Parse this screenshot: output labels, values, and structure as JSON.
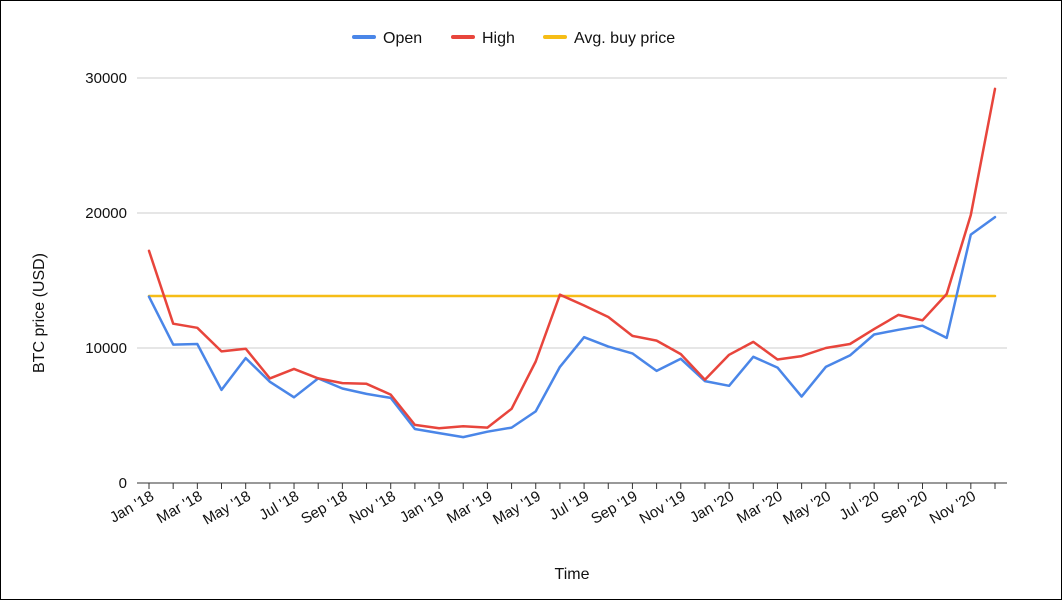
{
  "chart_data": {
    "type": "line",
    "title": "",
    "xlabel": "Time",
    "ylabel": "BTC price (USD)",
    "ylim": [
      0,
      30000
    ],
    "yticks": [
      0,
      10000,
      20000,
      30000
    ],
    "grid": true,
    "legend_position": "top",
    "categories": [
      "Jan '18",
      "Feb '18",
      "Mar '18",
      "Apr '18",
      "May '18",
      "Jun '18",
      "Jul '18",
      "Aug '18",
      "Sep '18",
      "Oct '18",
      "Nov '18",
      "Dec '18",
      "Jan '19",
      "Feb '19",
      "Mar '19",
      "Apr '19",
      "May '19",
      "Jun '19",
      "Jul '19",
      "Aug '19",
      "Sep '19",
      "Oct '19",
      "Nov '19",
      "Dec '19",
      "Jan '20",
      "Feb '20",
      "Mar '20",
      "Apr '20",
      "May '20",
      "Jun '20",
      "Jul '20",
      "Aug '20",
      "Sep '20",
      "Oct '20",
      "Nov '20",
      "Dec '20"
    ],
    "xtick_labels": [
      "Jan '18",
      "Mar '18",
      "May '18",
      "Jul '18",
      "Sep '18",
      "Nov '18",
      "Jan '19",
      "Mar '19",
      "May '19",
      "Jul '19",
      "Sep '19",
      "Nov '19",
      "Jan '20",
      "Mar '20",
      "May '20",
      "Jul '20",
      "Sep '20",
      "Nov '20"
    ],
    "series": [
      {
        "name": "Open",
        "color": "#4a86e8",
        "values": [
          13800,
          10250,
          10300,
          6900,
          9250,
          7500,
          6350,
          7750,
          7000,
          6600,
          6300,
          4000,
          3700,
          3400,
          3800,
          4100,
          5300,
          8600,
          10800,
          10100,
          9600,
          8300,
          9200,
          7550,
          7200,
          9350,
          8550,
          6400,
          8600,
          9450,
          11000,
          11350,
          11650,
          10750,
          18400,
          19700
        ]
      },
      {
        "name": "High",
        "color": "#e8453c",
        "values": [
          17200,
          11800,
          11500,
          9750,
          9950,
          7750,
          8450,
          7750,
          7400,
          7350,
          6550,
          4300,
          4050,
          4200,
          4100,
          5500,
          9000,
          13950,
          13150,
          12300,
          10900,
          10550,
          9550,
          7650,
          9500,
          10450,
          9150,
          9400,
          10000,
          10300,
          11400,
          12450,
          12050,
          14000,
          19850,
          29200
        ]
      },
      {
        "name": "Avg. buy price",
        "color": "#f6bd16",
        "values": [
          13850,
          13850,
          13850,
          13850,
          13850,
          13850,
          13850,
          13850,
          13850,
          13850,
          13850,
          13850,
          13850,
          13850,
          13850,
          13850,
          13850,
          13850,
          13850,
          13850,
          13850,
          13850,
          13850,
          13850,
          13850,
          13850,
          13850,
          13850,
          13850,
          13850,
          13850,
          13850,
          13850,
          13850,
          13850,
          13850
        ]
      }
    ]
  }
}
